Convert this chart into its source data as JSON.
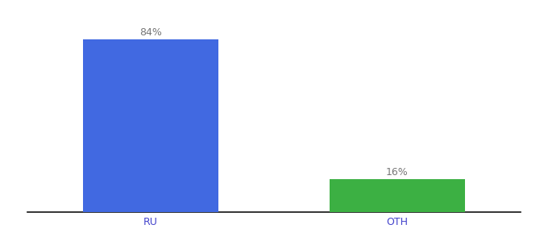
{
  "categories": [
    "RU",
    "OTH"
  ],
  "values": [
    84,
    16
  ],
  "bar_colors": [
    "#4169E1",
    "#3CB043"
  ],
  "labels": [
    "84%",
    "16%"
  ],
  "background_color": "#ffffff",
  "ylim": [
    0,
    95
  ],
  "bar_width": 0.55,
  "label_fontsize": 9,
  "tick_fontsize": 9,
  "tick_color": "#4444cc",
  "label_color": "#777777"
}
